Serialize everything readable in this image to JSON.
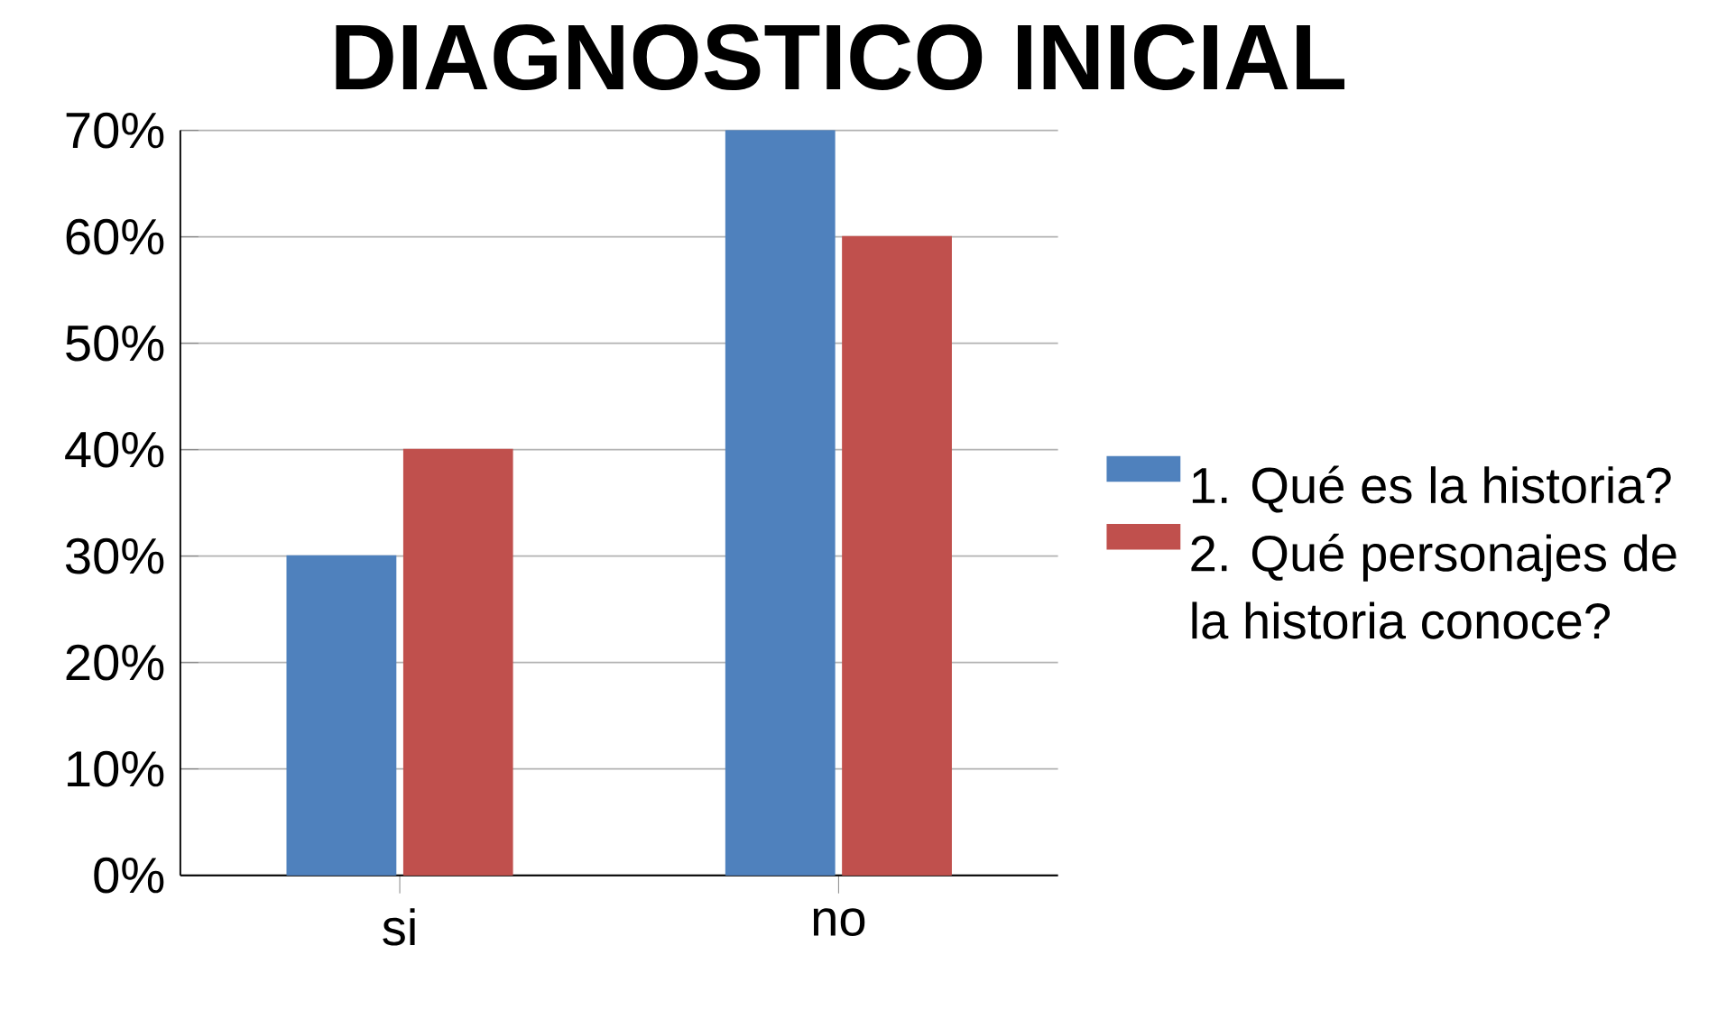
{
  "chart_data": {
    "type": "bar",
    "title": "DIAGNOSTICO INICIAL",
    "categories": [
      "si",
      "no"
    ],
    "series": [
      {
        "name": "1. Qué es la historia?",
        "color": "#4f81bd",
        "values": [
          30,
          70
        ]
      },
      {
        "name": "2. Qué personajes de la historia conoce?",
        "color": "#c0504d",
        "values": [
          40,
          60
        ]
      }
    ],
    "ylim": [
      0,
      70
    ],
    "yticks": [
      {
        "value": 0,
        "label": "0%"
      },
      {
        "value": 10,
        "label": "10%"
      },
      {
        "value": 20,
        "label": "20%"
      },
      {
        "value": 30,
        "label": "30%"
      },
      {
        "value": 40,
        "label": "40%"
      },
      {
        "value": 50,
        "label": "50%"
      },
      {
        "value": 60,
        "label": "60%"
      },
      {
        "value": 70,
        "label": "70%"
      }
    ],
    "grid": "y",
    "legend": "right"
  }
}
